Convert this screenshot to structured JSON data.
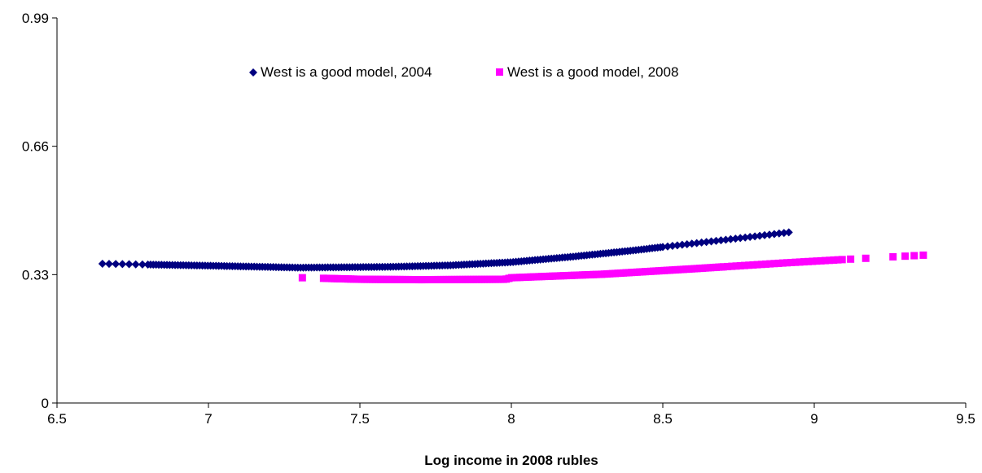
{
  "chart_data": {
    "type": "scatter",
    "title": "",
    "xlabel": "Log income in 2008 rubles",
    "ylabel": "",
    "xlim": [
      6.5,
      9.5
    ],
    "ylim": [
      0,
      0.99
    ],
    "xticks": [
      "6.5",
      "7",
      "7.5",
      "8",
      "8.5",
      "9",
      "9.5"
    ],
    "yticks": [
      "0",
      "0.33",
      "0.66",
      "0.99"
    ],
    "grid": false,
    "legend_position": "top-center",
    "series": [
      {
        "name": "West is a good model, 2004",
        "color": "#000080",
        "marker": "diamond",
        "x_range": [
          6.65,
          8.93
        ],
        "curve": [
          [
            6.65,
            0.358
          ],
          [
            7.0,
            0.353
          ],
          [
            7.3,
            0.348
          ],
          [
            7.6,
            0.35
          ],
          [
            7.8,
            0.354
          ],
          [
            8.0,
            0.362
          ],
          [
            8.2,
            0.376
          ],
          [
            8.4,
            0.392
          ],
          [
            8.6,
            0.41
          ],
          [
            8.8,
            0.428
          ],
          [
            8.93,
            0.44
          ]
        ]
      },
      {
        "name": "West is a good model, 2008",
        "color": "#ff00ff",
        "marker": "square",
        "x_range": [
          7.31,
          9.36
        ],
        "curve": [
          [
            7.31,
            0.322
          ],
          [
            7.5,
            0.318
          ],
          [
            7.7,
            0.317
          ],
          [
            7.98,
            0.318
          ],
          [
            8.0,
            0.322
          ],
          [
            8.3,
            0.331
          ],
          [
            8.6,
            0.345
          ],
          [
            8.9,
            0.36
          ],
          [
            9.1,
            0.369
          ],
          [
            9.36,
            0.38
          ]
        ]
      }
    ]
  }
}
